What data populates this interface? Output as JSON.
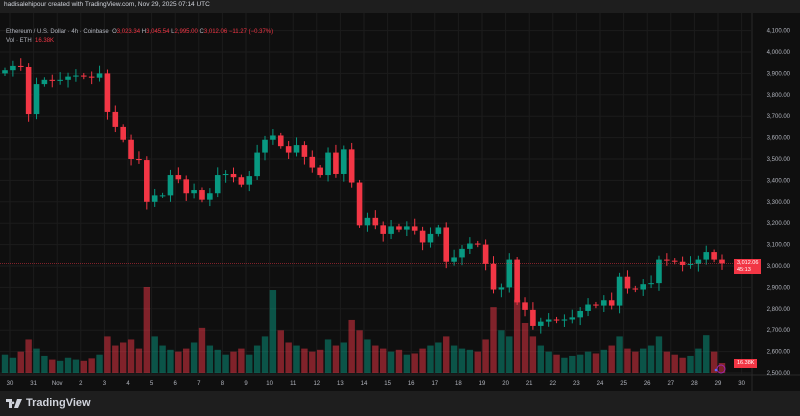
{
  "header": {
    "caption": "hadisalehipour created with TradingView.com, Nov 29, 2025 07:14 UTC"
  },
  "legend": {
    "symbol": "Ethereum / U.S. Dollar · 4h · Coinbase",
    "o_label": "O",
    "o": "3,023.34",
    "h_label": "H",
    "h": "3,045.54",
    "l_label": "L",
    "l": "2,995.00",
    "c_label": "C",
    "c": "3,012.06",
    "change": "−11.27 (−0.37%)",
    "vol_label": "Vol · ETH",
    "vol": "16.38K"
  },
  "price_tag": {
    "price": "3,012.06",
    "countdown": "45:13"
  },
  "volume_tag": "16.38K",
  "footer": {
    "brand": "TradingView"
  },
  "colors": {
    "up": "#089981",
    "down": "#f23645",
    "background": "#0f0f0f",
    "grid": "#1c1c1c"
  },
  "chart_data": {
    "type": "candlestick",
    "title": "Ethereum / U.S. Dollar · 4h · Coinbase",
    "y_ticks": [
      "4,100.00",
      "4,000.00",
      "3,900.00",
      "3,800.00",
      "3,700.00",
      "3,600.00",
      "3,500.00",
      "3,400.00",
      "3,300.00",
      "3,200.00",
      "3,100.00",
      "3,000.00",
      "2,900.00",
      "2,800.00",
      "2,700.00",
      "2,600.00",
      "2,500.00"
    ],
    "y_tick_values": [
      4100,
      4000,
      3900,
      3800,
      3700,
      3600,
      3500,
      3400,
      3300,
      3200,
      3100,
      3000,
      2900,
      2800,
      2700,
      2600,
      2500
    ],
    "x_ticks": [
      "30",
      "31",
      "Nov",
      "2",
      "3",
      "4",
      "5",
      "6",
      "7",
      "8",
      "9",
      "10",
      "11",
      "12",
      "13",
      "14",
      "15",
      "16",
      "17",
      "18",
      "19",
      "20",
      "21",
      "22",
      "23",
      "24",
      "25",
      "26",
      "27",
      "28",
      "29",
      "30"
    ],
    "first_open": 3900,
    "closes": [
      3915,
      3935,
      3930,
      3710,
      3850,
      3870,
      3865,
      3870,
      3885,
      3890,
      3885,
      3880,
      3900,
      3720,
      3650,
      3590,
      3500,
      3495,
      3300,
      3330,
      3330,
      3425,
      3405,
      3340,
      3355,
      3310,
      3340,
      3425,
      3430,
      3415,
      3380,
      3420,
      3530,
      3590,
      3610,
      3560,
      3530,
      3565,
      3510,
      3460,
      3425,
      3530,
      3430,
      3545,
      3390,
      3190,
      3225,
      3190,
      3150,
      3185,
      3170,
      3185,
      3165,
      3110,
      3150,
      3180,
      3020,
      3040,
      3080,
      3105,
      3100,
      3010,
      2890,
      2900,
      3030,
      2830,
      2795,
      2720,
      2740,
      2750,
      2745,
      2750,
      2760,
      2790,
      2820,
      2815,
      2840,
      2815,
      2950,
      2895,
      2890,
      2915,
      2920,
      3030,
      3025,
      3020,
      3005,
      3010,
      3030,
      3065,
      3030,
      3012.06
    ],
    "volumes_k": [
      30,
      25,
      35,
      55,
      40,
      28,
      22,
      20,
      25,
      22,
      20,
      24,
      30,
      60,
      45,
      50,
      55,
      40,
      141,
      60,
      45,
      38,
      35,
      40,
      50,
      74,
      45,
      38,
      30,
      35,
      40,
      30,
      45,
      60,
      136,
      70,
      50,
      45,
      40,
      35,
      38,
      55,
      45,
      50,
      87,
      70,
      55,
      45,
      40,
      35,
      38,
      30,
      32,
      40,
      45,
      50,
      60,
      45,
      40,
      38,
      35,
      55,
      108,
      70,
      60,
      120,
      82,
      60,
      45,
      35,
      30,
      25,
      28,
      30,
      35,
      32,
      38,
      45,
      60,
      40,
      35,
      40,
      45,
      60,
      35,
      30,
      25,
      28,
      40,
      62,
      35,
      16.38
    ],
    "current_price": 3012.06,
    "ylim": [
      2480,
      4140
    ]
  }
}
